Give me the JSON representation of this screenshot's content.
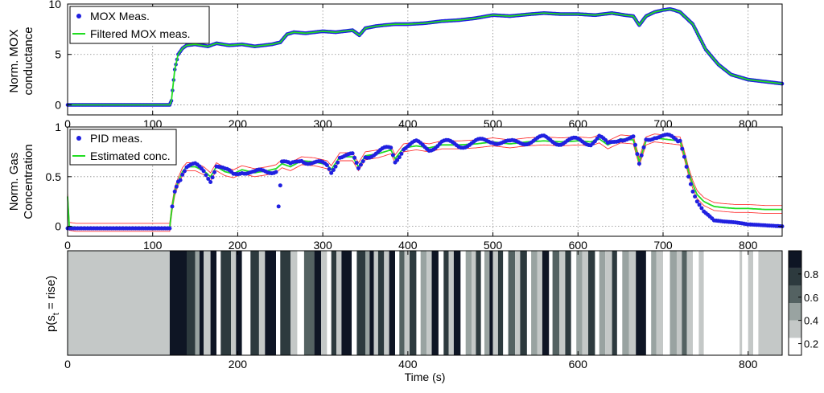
{
  "chart_data": [
    {
      "type": "line",
      "ylabel": [
        "Norm. MOX",
        "conductance"
      ],
      "xlim": [
        0,
        840
      ],
      "ylim": [
        -1,
        10
      ],
      "x_ticks": [
        "0",
        "100",
        "200",
        "300",
        "400",
        "500",
        "600",
        "700",
        "800"
      ],
      "y_ticks": [
        "0",
        "5",
        "10"
      ],
      "grid": true,
      "legend_position": "top-left",
      "series": [
        {
          "name": "MOX Meas.",
          "style": "markers",
          "color": "#2020e0",
          "x": [
            0,
            120,
            122,
            126,
            130,
            135,
            140,
            150,
            165,
            175,
            190,
            205,
            220,
            240,
            250,
            258,
            266,
            280,
            300,
            315,
            335,
            343,
            350,
            362,
            372,
            385,
            400,
            420,
            440,
            460,
            480,
            500,
            520,
            545,
            560,
            580,
            600,
            620,
            640,
            655,
            665,
            672,
            680,
            690,
            700,
            708,
            713,
            720,
            735,
            750,
            765,
            780,
            800,
            820,
            840
          ],
          "y": [
            0,
            0,
            0.4,
            3.5,
            5.0,
            5.6,
            5.9,
            6.0,
            5.8,
            6.1,
            5.9,
            6.0,
            5.8,
            6.0,
            6.2,
            7.0,
            7.2,
            7.1,
            7.3,
            7.2,
            7.4,
            6.9,
            7.6,
            7.8,
            7.9,
            8.0,
            8.0,
            8.1,
            8.3,
            8.4,
            8.6,
            8.9,
            8.8,
            9.0,
            9.1,
            9.0,
            9.0,
            8.9,
            9.1,
            8.9,
            8.8,
            7.9,
            8.8,
            9.2,
            9.4,
            9.5,
            9.4,
            9.2,
            8.0,
            5.5,
            4.0,
            3.0,
            2.5,
            2.3,
            2.1
          ]
        },
        {
          "name": "Filtered MOX meas.",
          "style": "line",
          "color": "#22dd22",
          "x": [
            0,
            120,
            122,
            126,
            130,
            135,
            140,
            150,
            165,
            175,
            190,
            205,
            220,
            240,
            250,
            258,
            266,
            280,
            300,
            315,
            335,
            343,
            350,
            362,
            372,
            385,
            400,
            420,
            440,
            460,
            480,
            500,
            520,
            545,
            560,
            580,
            600,
            620,
            640,
            655,
            665,
            672,
            680,
            690,
            700,
            708,
            713,
            720,
            735,
            750,
            765,
            780,
            800,
            820,
            840
          ],
          "y": [
            0,
            0,
            0.4,
            3.5,
            5.0,
            5.6,
            5.9,
            6.0,
            5.8,
            6.1,
            5.9,
            6.0,
            5.8,
            6.0,
            6.2,
            7.0,
            7.2,
            7.1,
            7.3,
            7.2,
            7.4,
            6.9,
            7.6,
            7.8,
            7.9,
            8.0,
            8.0,
            8.1,
            8.3,
            8.4,
            8.6,
            8.9,
            8.8,
            9.0,
            9.1,
            9.0,
            9.0,
            8.9,
            9.1,
            8.9,
            8.8,
            7.9,
            8.8,
            9.2,
            9.4,
            9.5,
            9.4,
            9.2,
            8.0,
            5.5,
            4.0,
            3.0,
            2.5,
            2.3,
            2.1
          ]
        }
      ]
    },
    {
      "type": "line",
      "ylabel": [
        "Norm. Gas",
        "Concentration"
      ],
      "xlim": [
        0,
        840
      ],
      "ylim": [
        -0.1,
        1.0
      ],
      "x_ticks": [
        "0",
        "100",
        "200",
        "300",
        "400",
        "500",
        "600",
        "700",
        "800"
      ],
      "y_ticks": [
        "0",
        "0.5",
        "1"
      ],
      "grid": true,
      "legend_position": "top-left",
      "series": [
        {
          "name": "PID meas.",
          "style": "markers",
          "color": "#2020e0",
          "x": [
            0,
            40,
            80,
            120,
            123,
            126,
            130,
            135,
            140,
            150,
            160,
            168,
            175,
            185,
            195,
            205,
            220,
            235,
            245,
            248,
            252,
            262,
            275,
            290,
            305,
            310,
            320,
            335,
            342,
            350,
            365,
            380,
            385,
            395,
            410,
            425,
            440,
            460,
            480,
            500,
            520,
            540,
            560,
            580,
            600,
            615,
            625,
            635,
            650,
            665,
            672,
            680,
            690,
            700,
            710,
            720,
            725,
            730,
            735,
            740,
            748,
            755,
            760,
            770,
            785,
            800,
            820,
            840
          ],
          "y": [
            -0.02,
            -0.02,
            -0.02,
            -0.02,
            0.2,
            0.35,
            0.45,
            0.55,
            0.6,
            0.6,
            0.56,
            0.48,
            0.62,
            0.55,
            0.52,
            0.57,
            0.53,
            0.55,
            0.58,
            0.2,
            0.65,
            0.6,
            0.68,
            0.64,
            0.6,
            0.55,
            0.72,
            0.7,
            0.57,
            0.72,
            0.74,
            0.78,
            0.66,
            0.8,
            0.83,
            0.79,
            0.84,
            0.82,
            0.84,
            0.87,
            0.83,
            0.86,
            0.88,
            0.85,
            0.86,
            0.85,
            0.9,
            0.81,
            0.9,
            0.88,
            0.6,
            0.88,
            0.92,
            0.9,
            0.88,
            0.86,
            0.7,
            0.5,
            0.35,
            0.25,
            0.15,
            0.1,
            0.06,
            0.05,
            0.04,
            0.02,
            0.01,
            0.0
          ]
        },
        {
          "name": "Estimated conc.",
          "style": "line",
          "color": "#22dd22",
          "x": [
            0,
            2,
            10,
            120,
            123,
            126,
            130,
            135,
            140,
            150,
            160,
            168,
            175,
            185,
            195,
            205,
            220,
            235,
            245,
            252,
            262,
            275,
            290,
            305,
            310,
            320,
            335,
            342,
            350,
            365,
            380,
            385,
            395,
            410,
            425,
            440,
            460,
            480,
            500,
            520,
            540,
            560,
            580,
            600,
            615,
            625,
            635,
            650,
            665,
            672,
            680,
            690,
            700,
            710,
            720,
            725,
            730,
            735,
            740,
            748,
            755,
            760,
            770,
            785,
            800,
            820,
            840
          ],
          "y": [
            0.3,
            0.0,
            -0.01,
            -0.01,
            0.2,
            0.35,
            0.45,
            0.55,
            0.6,
            0.6,
            0.56,
            0.5,
            0.6,
            0.55,
            0.53,
            0.57,
            0.54,
            0.56,
            0.58,
            0.63,
            0.6,
            0.66,
            0.65,
            0.62,
            0.57,
            0.7,
            0.7,
            0.6,
            0.71,
            0.73,
            0.77,
            0.68,
            0.79,
            0.81,
            0.79,
            0.82,
            0.82,
            0.83,
            0.85,
            0.83,
            0.85,
            0.86,
            0.85,
            0.86,
            0.85,
            0.88,
            0.82,
            0.88,
            0.87,
            0.65,
            0.86,
            0.89,
            0.88,
            0.87,
            0.86,
            0.72,
            0.55,
            0.42,
            0.32,
            0.25,
            0.22,
            0.2,
            0.19,
            0.18,
            0.18,
            0.17,
            0.17
          ]
        }
      ],
      "bounds": {
        "color": "#ff3333",
        "offset": 0.04,
        "outlier": {
          "x": 248,
          "y": 0.2
        }
      }
    },
    {
      "type": "heatmap",
      "ylabel": "p(s",
      "ylabel_sub": "t",
      "ylabel_tail": " = rise)",
      "xlabel": "Time (s)",
      "xlim": [
        0,
        840
      ],
      "x_ticks": [
        "0",
        "200",
        "400",
        "600",
        "800"
      ],
      "colorbar_ticks": [
        "0.2",
        "0.4",
        "0.6",
        "0.8"
      ],
      "colorbar_range": [
        0.1,
        1.0
      ],
      "segments": [
        [
          0,
          120,
          0.3
        ],
        [
          120,
          140,
          1
        ],
        [
          140,
          150,
          0.9
        ],
        [
          150,
          155,
          0.4
        ],
        [
          155,
          160,
          1
        ],
        [
          160,
          168,
          0.3
        ],
        [
          168,
          175,
          1
        ],
        [
          175,
          180,
          0.1
        ],
        [
          180,
          192,
          0.8
        ],
        [
          192,
          198,
          0.3
        ],
        [
          198,
          205,
          1
        ],
        [
          205,
          215,
          0.1
        ],
        [
          215,
          225,
          0.9
        ],
        [
          225,
          232,
          0.3
        ],
        [
          232,
          245,
          1
        ],
        [
          245,
          250,
          0.1
        ],
        [
          250,
          262,
          0.9
        ],
        [
          262,
          270,
          0.3
        ],
        [
          270,
          278,
          0.1
        ],
        [
          278,
          290,
          0.7
        ],
        [
          290,
          298,
          1
        ],
        [
          298,
          305,
          0.3
        ],
        [
          305,
          310,
          0.1
        ],
        [
          310,
          316,
          0.9
        ],
        [
          316,
          322,
          0.3
        ],
        [
          322,
          334,
          1
        ],
        [
          334,
          340,
          0.1
        ],
        [
          340,
          350,
          0.9
        ],
        [
          350,
          355,
          0.5
        ],
        [
          355,
          360,
          1
        ],
        [
          360,
          365,
          0.3
        ],
        [
          365,
          372,
          0.9
        ],
        [
          372,
          378,
          0.3
        ],
        [
          378,
          385,
          1
        ],
        [
          385,
          390,
          0.1
        ],
        [
          390,
          396,
          0.7
        ],
        [
          396,
          402,
          0.3
        ],
        [
          402,
          410,
          0.9
        ],
        [
          410,
          415,
          0.1
        ],
        [
          415,
          422,
          0.6
        ],
        [
          422,
          428,
          0.3
        ],
        [
          428,
          436,
          1
        ],
        [
          436,
          442,
          0.1
        ],
        [
          442,
          448,
          0.8
        ],
        [
          448,
          454,
          0.3
        ],
        [
          454,
          462,
          1
        ],
        [
          462,
          468,
          0.1
        ],
        [
          468,
          475,
          0.5
        ],
        [
          475,
          480,
          0.3
        ],
        [
          480,
          486,
          0.9
        ],
        [
          486,
          490,
          0.1
        ],
        [
          490,
          496,
          0.5
        ],
        [
          496,
          500,
          1
        ],
        [
          500,
          506,
          0.3
        ],
        [
          506,
          512,
          0.9
        ],
        [
          512,
          518,
          0.1
        ],
        [
          518,
          526,
          0.7
        ],
        [
          526,
          532,
          0.3
        ],
        [
          532,
          540,
          0.9
        ],
        [
          540,
          545,
          0.1
        ],
        [
          545,
          552,
          0.5
        ],
        [
          552,
          558,
          0.3
        ],
        [
          558,
          566,
          1
        ],
        [
          566,
          570,
          0.1
        ],
        [
          570,
          578,
          0.7
        ],
        [
          578,
          585,
          0.3
        ],
        [
          585,
          592,
          0.9
        ],
        [
          592,
          598,
          0.1
        ],
        [
          598,
          605,
          0.5
        ],
        [
          605,
          612,
          0.3
        ],
        [
          612,
          620,
          0.8
        ],
        [
          620,
          625,
          0.1
        ],
        [
          625,
          632,
          0.6
        ],
        [
          632,
          640,
          0.3
        ],
        [
          640,
          646,
          0.9
        ],
        [
          646,
          652,
          0.1
        ],
        [
          652,
          660,
          0.4
        ],
        [
          660,
          668,
          0.3
        ],
        [
          668,
          680,
          1
        ],
        [
          680,
          686,
          0.1
        ],
        [
          686,
          692,
          0.6
        ],
        [
          692,
          700,
          0.3
        ],
        [
          700,
          708,
          0.1
        ],
        [
          708,
          716,
          0.5
        ],
        [
          716,
          722,
          0.3
        ],
        [
          722,
          728,
          0.7
        ],
        [
          728,
          735,
          0.3
        ],
        [
          735,
          742,
          0.1
        ],
        [
          742,
          748,
          0.3
        ],
        [
          748,
          790,
          0.1
        ],
        [
          790,
          793,
          0.3
        ],
        [
          793,
          800,
          0.1
        ],
        [
          800,
          806,
          0.3
        ],
        [
          806,
          812,
          0.1
        ],
        [
          812,
          840,
          0.3
        ]
      ]
    }
  ]
}
